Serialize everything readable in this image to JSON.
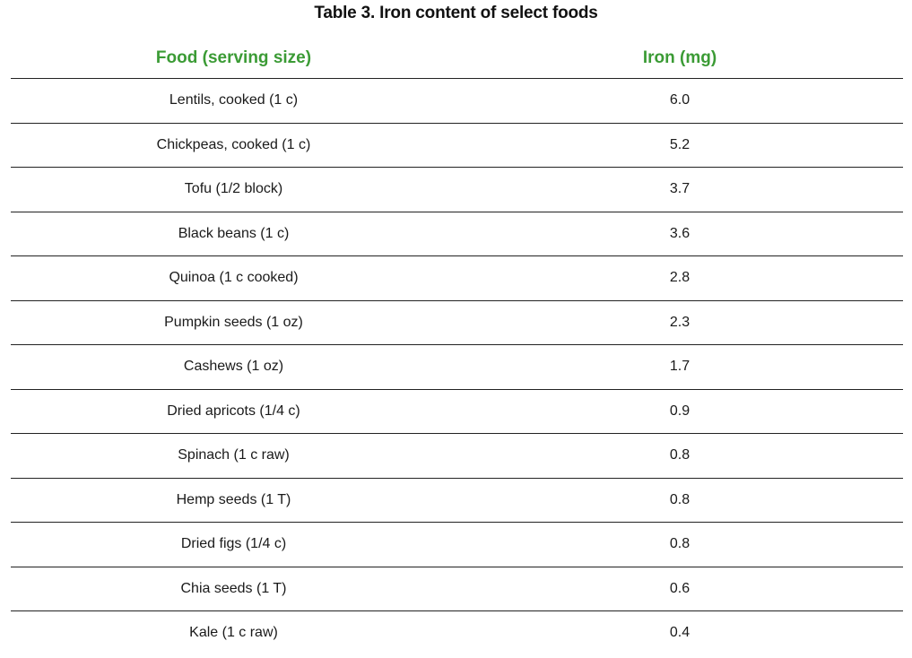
{
  "title": "Table 3. Iron content of select foods",
  "colors": {
    "header_text": "#3b9b35",
    "rule": "#222222",
    "text": "#1a1a1a"
  },
  "table": {
    "headers": [
      "Food (serving size)",
      "Iron (mg)"
    ],
    "rows": [
      {
        "food": "Lentils, cooked (1 c)",
        "iron": "6.0"
      },
      {
        "food": "Chickpeas, cooked (1 c)",
        "iron": "5.2"
      },
      {
        "food": "Tofu (1/2 block)",
        "iron": "3.7"
      },
      {
        "food": "Black beans (1 c)",
        "iron": "3.6"
      },
      {
        "food": "Quinoa (1 c cooked)",
        "iron": "2.8"
      },
      {
        "food": "Pumpkin seeds (1 oz)",
        "iron": "2.3"
      },
      {
        "food": "Cashews (1 oz)",
        "iron": "1.7"
      },
      {
        "food": "Dried apricots (1/4 c)",
        "iron": "0.9"
      },
      {
        "food": "Spinach (1 c raw)",
        "iron": "0.8"
      },
      {
        "food": "Hemp seeds (1 T)",
        "iron": "0.8"
      },
      {
        "food": "Dried figs (1/4 c)",
        "iron": "0.8"
      },
      {
        "food": "Chia seeds (1 T)",
        "iron": "0.6"
      },
      {
        "food": "Kale (1 c raw)",
        "iron": "0.4"
      }
    ]
  }
}
